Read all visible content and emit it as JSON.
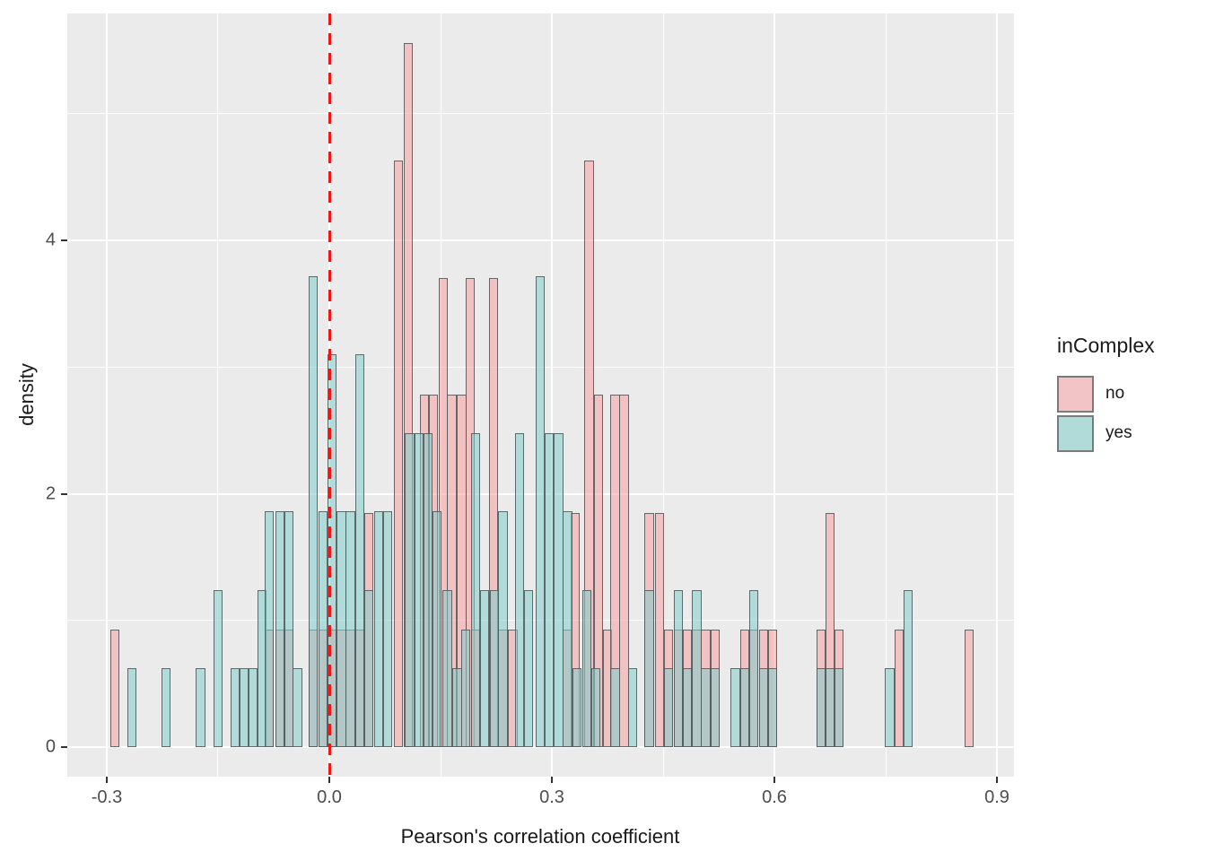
{
  "chart_data": {
    "type": "bar",
    "subtype": "overlaid-density-histogram",
    "title": "",
    "xlabel": "Pearson's correlation coefficient",
    "ylabel": "density",
    "xlim": [
      -0.353,
      0.928
    ],
    "ylim": [
      0,
      6.02
    ],
    "binwidth": 0.0125,
    "grid": "on",
    "x_ticks": {
      "values": [
        -0.3,
        0.0,
        0.3,
        0.6,
        0.9
      ],
      "labels": [
        "-0.3",
        "0.0",
        "0.3",
        "0.6",
        "0.9"
      ],
      "minor": [
        -0.15,
        0.15,
        0.45,
        0.75
      ]
    },
    "y_ticks": {
      "values": [
        0,
        2,
        4
      ],
      "labels": [
        "0",
        "2",
        "4"
      ],
      "minor": [
        1,
        3,
        5
      ]
    },
    "vline": {
      "x": 0.0,
      "style": "dashed",
      "color": "#F51414"
    },
    "legend": {
      "title": "inComplex",
      "position": "right",
      "entries": [
        {
          "label": "no",
          "swatch_color": "#F2C4C5"
        },
        {
          "label": "yes",
          "swatch_color": "#B0DBD9"
        }
      ]
    },
    "style": {
      "panel_bg": "#EBEBEB",
      "grid_color": "#FFFFFF",
      "bar_border": "#505558",
      "axis_text": "#4D4D4D",
      "title_text": "#1A1A1A"
    },
    "series": [
      {
        "name": "no",
        "fill": "rgba(248,159,159,0.55)",
        "bars": [
          [
            -0.295,
            0.93
          ],
          [
            -0.087,
            0.93
          ],
          [
            -0.073,
            0.93
          ],
          [
            -0.061,
            0.93
          ],
          [
            -0.028,
            0.93
          ],
          [
            -0.015,
            0.93
          ],
          [
            -0.003,
            0.93
          ],
          [
            0.01,
            0.93
          ],
          [
            0.022,
            0.93
          ],
          [
            0.035,
            0.93
          ],
          [
            0.047,
            1.85
          ],
          [
            0.087,
            4.63
          ],
          [
            0.1,
            5.56
          ],
          [
            0.122,
            2.78
          ],
          [
            0.134,
            2.78
          ],
          [
            0.147,
            3.7
          ],
          [
            0.159,
            2.78
          ],
          [
            0.172,
            2.78
          ],
          [
            0.184,
            3.7
          ],
          [
            0.191,
            0.93
          ],
          [
            0.215,
            3.7
          ],
          [
            0.228,
            0.93
          ],
          [
            0.241,
            0.93
          ],
          [
            0.315,
            0.93
          ],
          [
            0.325,
            1.85
          ],
          [
            0.344,
            4.63
          ],
          [
            0.357,
            2.78
          ],
          [
            0.369,
            0.93
          ],
          [
            0.379,
            2.78
          ],
          [
            0.391,
            2.78
          ],
          [
            0.425,
            1.85
          ],
          [
            0.439,
            1.85
          ],
          [
            0.451,
            0.93
          ],
          [
            0.464,
            0.93
          ],
          [
            0.476,
            0.93
          ],
          [
            0.489,
            0.93
          ],
          [
            0.501,
            0.93
          ],
          [
            0.514,
            0.93
          ],
          [
            0.554,
            0.93
          ],
          [
            0.566,
            0.93
          ],
          [
            0.579,
            0.93
          ],
          [
            0.591,
            0.93
          ],
          [
            0.657,
            0.93
          ],
          [
            0.669,
            1.85
          ],
          [
            0.681,
            0.93
          ],
          [
            0.762,
            0.93
          ],
          [
            0.856,
            0.93
          ]
        ]
      },
      {
        "name": "yes",
        "fill": "rgba(128,206,202,0.55)",
        "bars": [
          [
            -0.272,
            0.62
          ],
          [
            -0.226,
            0.62
          ],
          [
            -0.18,
            0.62
          ],
          [
            -0.156,
            1.24
          ],
          [
            -0.133,
            0.62
          ],
          [
            -0.121,
            0.62
          ],
          [
            -0.109,
            0.62
          ],
          [
            -0.097,
            1.24
          ],
          [
            -0.087,
            1.86
          ],
          [
            -0.073,
            1.86
          ],
          [
            -0.061,
            1.86
          ],
          [
            -0.049,
            0.62
          ],
          [
            -0.028,
            3.72
          ],
          [
            -0.015,
            1.86
          ],
          [
            -0.003,
            3.1
          ],
          [
            0.01,
            1.86
          ],
          [
            0.022,
            1.86
          ],
          [
            0.035,
            3.1
          ],
          [
            0.047,
            1.24
          ],
          [
            0.06,
            1.86
          ],
          [
            0.072,
            1.86
          ],
          [
            0.102,
            2.48
          ],
          [
            0.115,
            2.48
          ],
          [
            0.127,
            2.48
          ],
          [
            0.139,
            1.86
          ],
          [
            0.153,
            1.24
          ],
          [
            0.166,
            0.62
          ],
          [
            0.178,
            0.93
          ],
          [
            0.191,
            2.48
          ],
          [
            0.203,
            1.24
          ],
          [
            0.216,
            1.24
          ],
          [
            0.228,
            1.86
          ],
          [
            0.25,
            2.48
          ],
          [
            0.262,
            1.24
          ],
          [
            0.278,
            3.72
          ],
          [
            0.29,
            2.48
          ],
          [
            0.303,
            2.48
          ],
          [
            0.315,
            1.86
          ],
          [
            0.328,
            0.62
          ],
          [
            0.341,
            1.24
          ],
          [
            0.353,
            0.62
          ],
          [
            0.379,
            0.62
          ],
          [
            0.403,
            0.62
          ],
          [
            0.425,
            1.24
          ],
          [
            0.451,
            0.62
          ],
          [
            0.464,
            1.24
          ],
          [
            0.476,
            0.62
          ],
          [
            0.489,
            1.24
          ],
          [
            0.501,
            0.62
          ],
          [
            0.514,
            0.62
          ],
          [
            0.541,
            0.62
          ],
          [
            0.554,
            0.62
          ],
          [
            0.566,
            1.24
          ],
          [
            0.579,
            0.62
          ],
          [
            0.591,
            0.62
          ],
          [
            0.657,
            0.62
          ],
          [
            0.669,
            0.62
          ],
          [
            0.681,
            0.62
          ],
          [
            0.749,
            0.62
          ],
          [
            0.774,
            1.24
          ]
        ]
      }
    ]
  }
}
